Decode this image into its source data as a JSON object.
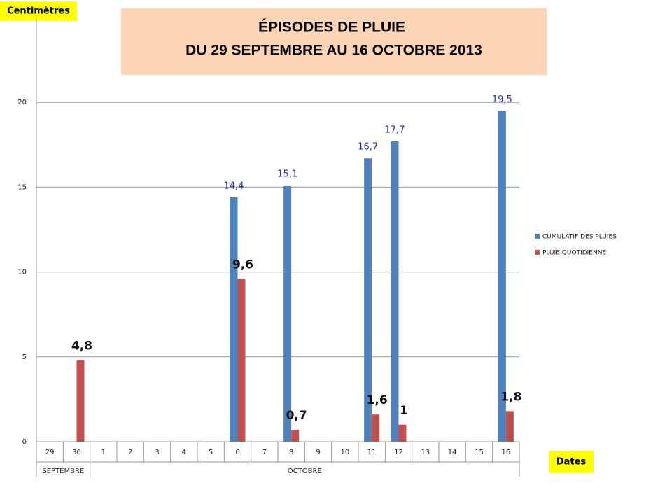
{
  "chart_data": {
    "type": "bar",
    "title": "ÉPISODES DE PLUIE",
    "subtitle": "DU 29 SEPTEMBRE AU 16 OCTOBRE 2013",
    "y_label": "Centimètres",
    "x_label": "Dates",
    "categories": [
      "29",
      "30",
      "1",
      "2",
      "3",
      "4",
      "5",
      "6",
      "7",
      "8",
      "9",
      "10",
      "11",
      "12",
      "13",
      "14",
      "15",
      "16"
    ],
    "x_groups": [
      {
        "label": "SEPTEMBRE",
        "from": "29",
        "to": "30"
      },
      {
        "label": "OCTOBRE",
        "from": "1",
        "to": "16"
      }
    ],
    "series": [
      {
        "name": "CUMULATIF DES PLUIES",
        "color": "#4f81bd",
        "values": [
          null,
          null,
          null,
          null,
          null,
          null,
          null,
          14.4,
          null,
          15.1,
          null,
          null,
          16.7,
          17.7,
          null,
          null,
          null,
          19.5
        ],
        "value_labels": [
          null,
          null,
          null,
          null,
          null,
          null,
          null,
          "14,4",
          null,
          "15,1",
          null,
          null,
          "16,7",
          "17,7",
          null,
          null,
          null,
          "19,5"
        ]
      },
      {
        "name": "PLUIE QUOTIDIENNE",
        "color": "#c0504d",
        "values": [
          null,
          4.8,
          null,
          null,
          null,
          null,
          null,
          9.6,
          null,
          0.7,
          null,
          null,
          1.6,
          1,
          null,
          null,
          null,
          1.8
        ],
        "value_labels": [
          null,
          "4,8",
          null,
          null,
          null,
          null,
          null,
          "9,6",
          null,
          "0,7",
          null,
          null,
          "1,6",
          "1",
          null,
          null,
          null,
          "1,8"
        ]
      }
    ],
    "ylim": [
      0,
      25
    ],
    "yticks": [
      0,
      5,
      10,
      15,
      20
    ],
    "grid": true,
    "legend": "right"
  }
}
